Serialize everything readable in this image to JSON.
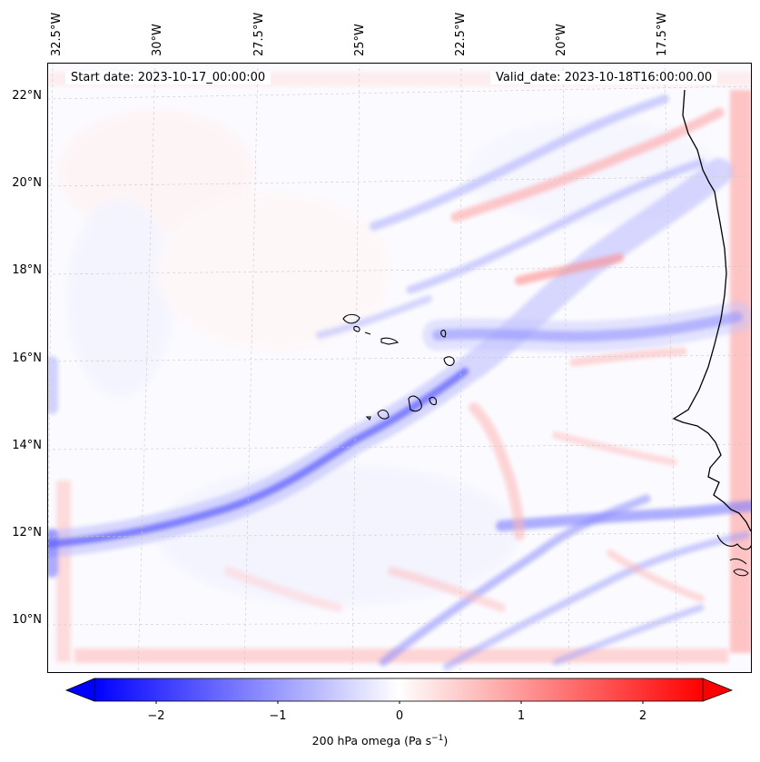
{
  "map": {
    "start_date": "Start date: 2023-10-17_00:00:00",
    "valid_date": "Valid_date: 2023-10-18T16:00:00.00",
    "lon_labels": [
      "32.5°W",
      "30°W",
      "27.5°W",
      "25°W",
      "22.5°W",
      "20°W",
      "17.5°W"
    ],
    "lat_labels": [
      "22°N",
      "20°N",
      "18°N",
      "16°N",
      "14°N",
      "12°N",
      "10°N"
    ],
    "variable": "200 hPa omega",
    "units": "Pa s",
    "units_exponent": "−1",
    "colormap": "bwr",
    "colors": {
      "neg": "#0000ff",
      "zero": "#ffffff",
      "pos": "#ff0000",
      "coast": "#000000"
    },
    "extent": {
      "lon_min": -33.0,
      "lon_max": -15.5,
      "lat_min": 9.0,
      "lat_max": 22.7
    }
  },
  "colorbar": {
    "ticks": [
      "−2",
      "−1",
      "0",
      "1",
      "2"
    ],
    "tick_values": [
      -2,
      -1,
      0,
      1,
      2
    ],
    "vmin": -2.5,
    "vmax": 2.5
  }
}
